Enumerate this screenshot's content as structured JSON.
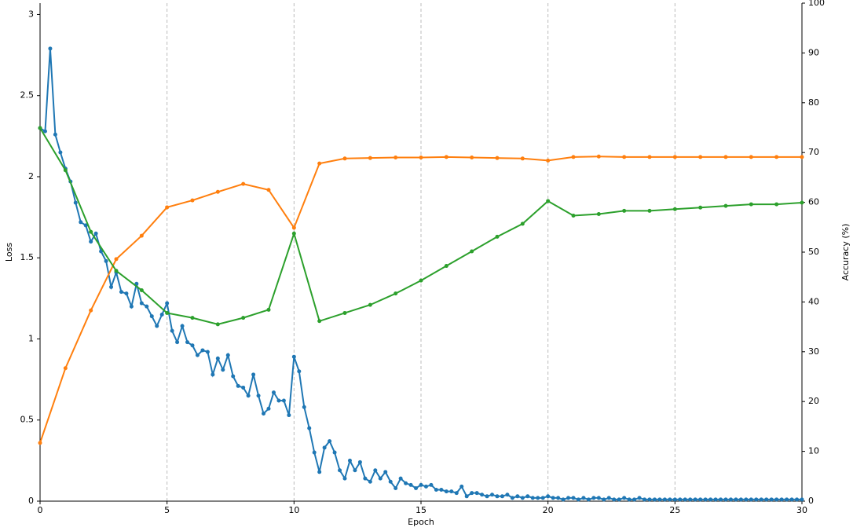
{
  "chart_data": {
    "type": "line",
    "xlabel": "Epoch",
    "ylabel": "Loss",
    "y2label": "Accuracy (%)",
    "x": [
      0,
      1,
      2,
      3,
      4,
      5,
      6,
      7,
      8,
      9,
      10,
      11,
      12,
      13,
      14,
      15,
      16,
      17,
      18,
      19,
      20,
      21,
      22,
      23,
      24,
      25,
      26,
      27,
      28,
      29,
      30
    ],
    "xlim": [
      0,
      30
    ],
    "xticks": [
      0,
      5,
      10,
      15,
      20,
      25,
      30
    ],
    "ylim": [
      0,
      3.07
    ],
    "yticks": [
      0,
      0.5,
      1,
      1.5,
      2,
      2.5,
      3
    ],
    "y2lim": [
      0,
      100
    ],
    "y2ticks": [
      0,
      10,
      20,
      30,
      40,
      50,
      60,
      70,
      80,
      90,
      100
    ],
    "xgrid": true,
    "series": [
      {
        "color": "#1f77b4",
        "x": [
          0,
          0.2,
          0.4,
          0.6,
          0.8,
          1,
          1.2,
          1.4,
          1.6,
          1.8,
          2,
          2.2,
          2.4,
          2.6,
          2.8,
          3,
          3.2,
          3.4,
          3.6,
          3.8,
          4,
          4.2,
          4.4,
          4.6,
          4.8,
          5,
          5.2,
          5.4,
          5.6,
          5.8,
          6,
          6.2,
          6.4,
          6.6,
          6.8,
          7,
          7.2,
          7.4,
          7.6,
          7.8,
          8,
          8.2,
          8.4,
          8.6,
          8.8,
          9,
          9.2,
          9.4,
          9.6,
          9.8,
          10,
          10.2,
          10.4,
          10.6,
          10.8,
          11,
          11.2,
          11.4,
          11.6,
          11.8,
          12,
          12.2,
          12.4,
          12.6,
          12.8,
          13,
          13.2,
          13.4,
          13.6,
          13.8,
          14,
          14.2,
          14.4,
          14.6,
          14.8,
          15,
          15.2,
          15.4,
          15.6,
          15.8,
          16,
          16.2,
          16.4,
          16.6,
          16.8,
          17,
          17.2,
          17.4,
          17.6,
          17.8,
          18,
          18.2,
          18.4,
          18.6,
          18.8,
          19,
          19.2,
          19.4,
          19.6,
          19.8,
          20,
          20.2,
          20.4,
          20.6,
          20.8,
          21,
          21.2,
          21.4,
          21.6,
          21.8,
          22,
          22.2,
          22.4,
          22.6,
          22.8,
          23,
          23.2,
          23.4,
          23.6,
          23.8,
          24,
          24.2,
          24.4,
          24.6,
          24.8,
          25,
          25.2,
          25.4,
          25.6,
          25.8,
          26,
          26.2,
          26.4,
          26.6,
          26.8,
          27,
          27.2,
          27.4,
          27.6,
          27.8,
          28,
          28.2,
          28.4,
          28.6,
          28.8,
          29,
          29.2,
          29.4,
          29.6,
          29.8,
          30
        ],
        "values": [
          2.3,
          2.28,
          2.79,
          2.26,
          2.15,
          2.05,
          1.97,
          1.84,
          1.72,
          1.7,
          1.6,
          1.65,
          1.54,
          1.48,
          1.32,
          1.41,
          1.29,
          1.28,
          1.2,
          1.34,
          1.22,
          1.2,
          1.14,
          1.08,
          1.15,
          1.22,
          1.05,
          0.98,
          1.08,
          0.98,
          0.96,
          0.9,
          0.93,
          0.92,
          0.78,
          0.88,
          0.81,
          0.9,
          0.77,
          0.71,
          0.7,
          0.65,
          0.78,
          0.65,
          0.54,
          0.57,
          0.67,
          0.62,
          0.62,
          0.53,
          0.89,
          0.8,
          0.58,
          0.45,
          0.3,
          0.18,
          0.33,
          0.37,
          0.3,
          0.19,
          0.14,
          0.25,
          0.19,
          0.24,
          0.14,
          0.12,
          0.19,
          0.14,
          0.18,
          0.12,
          0.08,
          0.14,
          0.11,
          0.1,
          0.08,
          0.1,
          0.09,
          0.1,
          0.07,
          0.07,
          0.06,
          0.06,
          0.05,
          0.09,
          0.03,
          0.05,
          0.05,
          0.04,
          0.03,
          0.04,
          0.03,
          0.03,
          0.04,
          0.02,
          0.03,
          0.02,
          0.03,
          0.02,
          0.02,
          0.02,
          0.03,
          0.02,
          0.02,
          0.01,
          0.02,
          0.02,
          0.01,
          0.02,
          0.01,
          0.02,
          0.02,
          0.01,
          0.02,
          0.01,
          0.01,
          0.02,
          0.01,
          0.01,
          0.02,
          0.01,
          0.01,
          0.01,
          0.01,
          0.01,
          0.01,
          0.01,
          0.01,
          0.01,
          0.01,
          0.01,
          0.01,
          0.01,
          0.01,
          0.01,
          0.01,
          0.01,
          0.01,
          0.01,
          0.01,
          0.01,
          0.01,
          0.01,
          0.01,
          0.01,
          0.01,
          0.01,
          0.01,
          0.01,
          0.01,
          0.01,
          0.01
        ]
      },
      {
        "color": "#ff7f0e",
        "axis": "y2",
        "values": [
          11.7,
          26.7,
          38.3,
          48.6,
          53.3,
          59.0,
          60.4,
          62.1,
          63.7,
          62.5,
          54.9,
          67.8,
          68.8,
          68.9,
          69.0,
          69.0,
          69.1,
          69.0,
          68.9,
          68.8,
          68.4,
          69.1,
          69.2,
          69.1,
          69.1,
          69.1,
          69.1,
          69.1,
          69.1,
          69.1,
          69.1
        ]
      },
      {
        "color": "#2ca02c",
        "values": [
          2.3,
          2.04,
          1.66,
          1.42,
          1.3,
          1.16,
          1.13,
          1.09,
          1.13,
          1.18,
          1.65,
          1.11,
          1.16,
          1.21,
          1.28,
          1.36,
          1.45,
          1.54,
          1.63,
          1.71,
          1.85,
          1.76,
          1.77,
          1.79,
          1.79,
          1.8,
          1.81,
          1.82,
          1.83,
          1.83,
          1.84
        ]
      }
    ]
  }
}
